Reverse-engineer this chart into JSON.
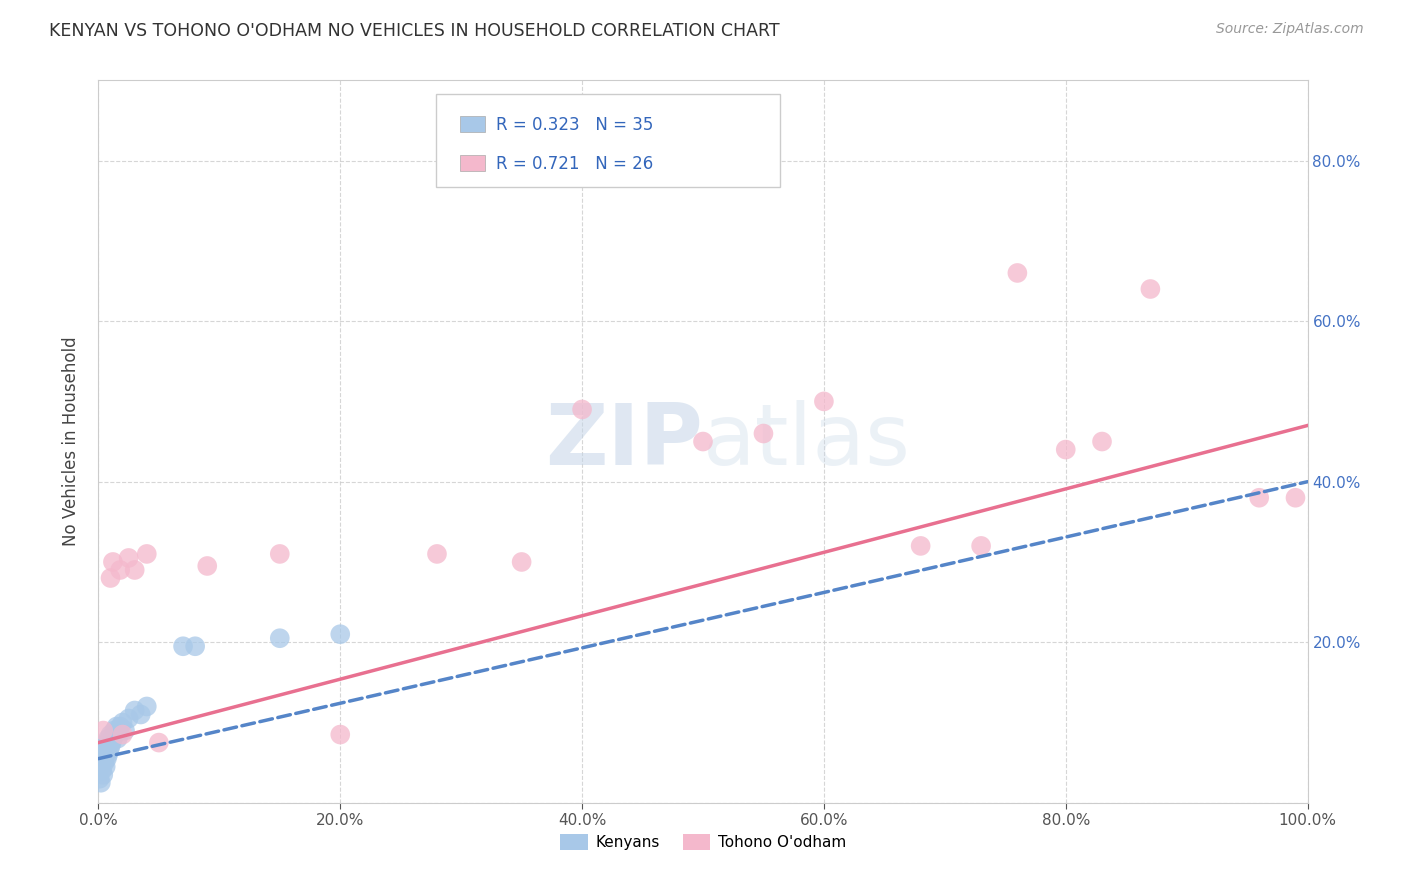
{
  "title": "KENYAN VS TOHONO O'ODHAM NO VEHICLES IN HOUSEHOLD CORRELATION CHART",
  "source": "Source: ZipAtlas.com",
  "ylabel": "No Vehicles in Household",
  "xlim": [
    0.0,
    1.0
  ],
  "ylim": [
    0.0,
    0.9
  ],
  "xticks": [
    0.0,
    0.2,
    0.4,
    0.6,
    0.8,
    1.0
  ],
  "xticklabels": [
    "0.0%",
    "20.0%",
    "40.0%",
    "60.0%",
    "80.0%",
    "100.0%"
  ],
  "right_yticks": [
    0.0,
    0.2,
    0.4,
    0.6,
    0.8
  ],
  "right_yticklabels": [
    "",
    "20.0%",
    "40.0%",
    "60.0%",
    "80.0%"
  ],
  "kenyan_R": 0.323,
  "kenyan_N": 35,
  "tohono_R": 0.721,
  "tohono_N": 26,
  "kenyan_color": "#a8c8e8",
  "tohono_color": "#f4b8cc",
  "kenyan_line_color": "#5585c8",
  "tohono_line_color": "#e87090",
  "legend_label_kenyan": "Kenyans",
  "legend_label_tohono": "Tohono O'odham",
  "watermark_zip": "ZIP",
  "watermark_atlas": "atlas",
  "background_color": "#ffffff",
  "grid_color": "#cccccc",
  "kenyan_x": [
    0.001,
    0.002,
    0.003,
    0.003,
    0.004,
    0.004,
    0.005,
    0.005,
    0.006,
    0.006,
    0.007,
    0.007,
    0.008,
    0.008,
    0.009,
    0.01,
    0.01,
    0.011,
    0.012,
    0.013,
    0.014,
    0.015,
    0.016,
    0.017,
    0.018,
    0.02,
    0.022,
    0.025,
    0.03,
    0.035,
    0.04,
    0.07,
    0.08,
    0.15,
    0.2
  ],
  "kenyan_y": [
    0.03,
    0.025,
    0.04,
    0.055,
    0.035,
    0.06,
    0.05,
    0.07,
    0.045,
    0.065,
    0.055,
    0.075,
    0.06,
    0.08,
    0.065,
    0.07,
    0.085,
    0.075,
    0.08,
    0.09,
    0.085,
    0.095,
    0.08,
    0.09,
    0.095,
    0.1,
    0.09,
    0.105,
    0.115,
    0.11,
    0.12,
    0.195,
    0.195,
    0.205,
    0.21
  ],
  "tohono_x": [
    0.004,
    0.01,
    0.012,
    0.018,
    0.02,
    0.025,
    0.03,
    0.04,
    0.05,
    0.09,
    0.15,
    0.2,
    0.28,
    0.35,
    0.4,
    0.5,
    0.55,
    0.6,
    0.68,
    0.73,
    0.76,
    0.8,
    0.83,
    0.87,
    0.96,
    0.99
  ],
  "tohono_y": [
    0.09,
    0.28,
    0.3,
    0.29,
    0.085,
    0.305,
    0.29,
    0.31,
    0.075,
    0.295,
    0.31,
    0.085,
    0.31,
    0.3,
    0.49,
    0.45,
    0.46,
    0.5,
    0.32,
    0.32,
    0.66,
    0.44,
    0.45,
    0.64,
    0.38,
    0.38
  ],
  "kenyan_line_x": [
    0.0,
    1.0
  ],
  "kenyan_line_y": [
    0.055,
    0.4
  ],
  "tohono_line_x": [
    0.0,
    1.0
  ],
  "tohono_line_y": [
    0.075,
    0.47
  ]
}
